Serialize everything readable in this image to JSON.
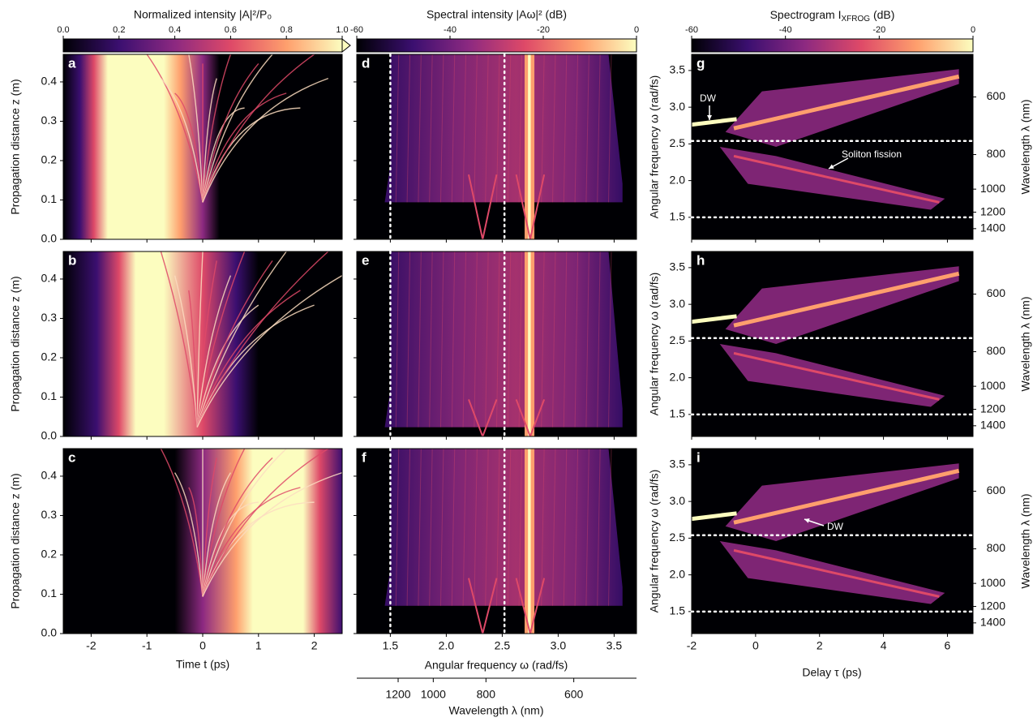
{
  "colorbars": [
    {
      "label": "Normalized intensity |A|²/P₀",
      "lim": [
        0,
        1
      ],
      "ticks": [
        {
          "value": 0,
          "label": "0.0"
        },
        0.2,
        0.4,
        0.6,
        0.8,
        {
          "value": 1,
          "label": "1.0"
        }
      ]
    },
    {
      "label": "Spectral intensity |Aω|² (dB)",
      "lim": [
        -60,
        0
      ],
      "ticks": [
        -60,
        -40,
        -20,
        0
      ]
    },
    {
      "label": "Spectrogram I",
      "label_sub": "XFROG",
      "label_unit": " (dB)",
      "lim": [
        -60,
        0
      ],
      "ticks": [
        -60,
        -40,
        -20,
        0
      ]
    }
  ],
  "panels": [
    "a",
    "b",
    "c",
    "d",
    "e",
    "f",
    "g",
    "h",
    "i"
  ],
  "time_axis": {
    "label": "Time t (ps)",
    "xlim": [
      -2.5,
      2.5
    ],
    "xticks": [
      -2,
      -1,
      0,
      1,
      2
    ]
  },
  "z_axis": {
    "label": "Propagation distance z (m)",
    "ylim": [
      0,
      0.47
    ],
    "yticks": [
      {
        "value": 0,
        "label": "0.0"
      },
      0.1,
      0.2,
      0.3,
      0.4
    ]
  },
  "omega_axis": {
    "label": "Angular frequency ω (rad/fs)",
    "xlim": [
      1.2,
      3.7
    ],
    "xticks": [
      1.5,
      {
        "value": 2,
        "label": "2.0"
      },
      2.5,
      {
        "value": 3,
        "label": "3.0"
      },
      3.5
    ],
    "markers": [
      1.5,
      2.52
    ]
  },
  "wavelength_axis": {
    "label": "Wavelength λ (nm)",
    "ticks": [
      1200,
      1000,
      800,
      600
    ]
  },
  "delay_axis": {
    "label": "Delay τ (ps)",
    "xlim": [
      -2,
      6.8
    ],
    "xticks": [
      -2,
      0,
      2,
      4,
      6
    ]
  },
  "spectrogram_omega_axis": {
    "label": "Angular frequency ω (rad/fs)",
    "ylim": [
      1.2,
      3.72
    ],
    "yticks": [
      1.5,
      {
        "value": 2,
        "label": "2.0"
      },
      2.5,
      {
        "value": 3,
        "label": "3.0"
      },
      3.5
    ],
    "markers": [
      1.5,
      2.54
    ]
  },
  "spectrogram_wavelength_axis": {
    "label": "Wavelength λ (nm)",
    "ticks": [
      600,
      800,
      1000,
      1200,
      1400
    ]
  },
  "annotations": [
    {
      "text": "DW"
    },
    {
      "text": "Soliton fission"
    },
    {
      "text": "DW"
    }
  ]
}
